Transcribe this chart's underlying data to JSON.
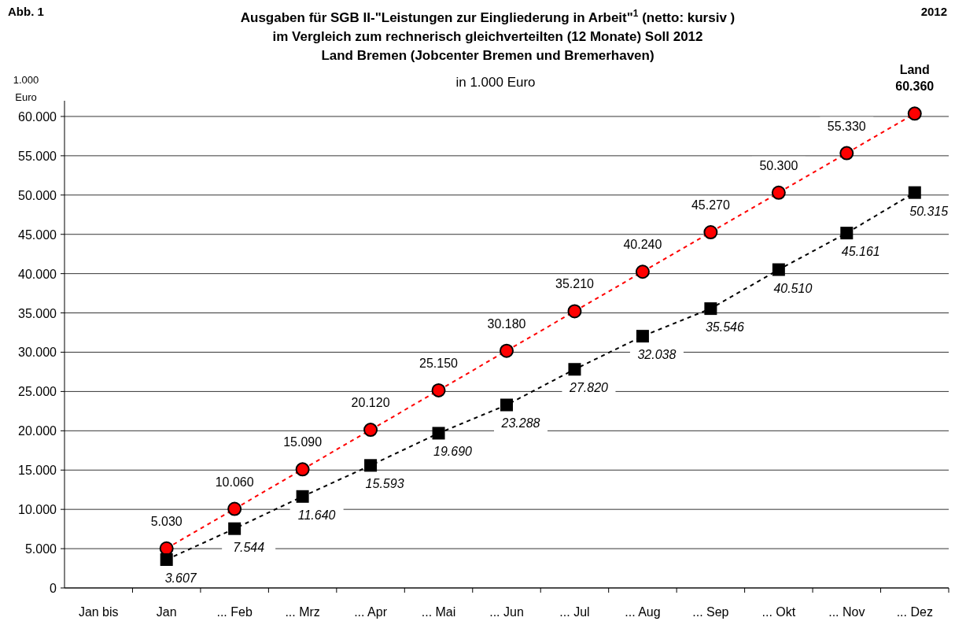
{
  "chart_data": {
    "type": "line",
    "title": "Ausgaben für SGB II-\"Leistungen zur Eingliederung in Arbeit\"$^{1}$ (netto: kursiv )\nim Vergleich zum rechnerisch gleichverteilten (12 Monate) Soll 2012\nLand Bremen (Jobcenter Bremen und Bremerhaven)",
    "subtitle": "in 1.000 Euro",
    "ylabel": "1.000\nEuro",
    "annotations": [
      "Abb. 1",
      "2012",
      "Land"
    ],
    "categories": [
      "Jan bis",
      "Jan",
      "... Feb",
      "... Mrz",
      "... Apr",
      "... Mai",
      "... Jun",
      "... Jul",
      "... Aug",
      "... Sep",
      "... Okt",
      "... Nov",
      "... Dez"
    ],
    "series": [
      {
        "color": "#ff0000",
        "marker": "circle",
        "line_style": "dashed",
        "values": [
          null,
          5030,
          10060,
          15090,
          20120,
          25150,
          30180,
          35210,
          40240,
          45270,
          50300,
          55330,
          60360
        ],
        "value_labels": [
          null,
          "5.030",
          "10.060",
          "15.090",
          "20.120",
          "25.150",
          "30.180",
          "35.210",
          "40.240",
          "45.270",
          "50.300",
          "55.330",
          "60.360"
        ]
      },
      {
        "color": "#000000",
        "marker": "square",
        "line_style": "dashed",
        "values": [
          null,
          3607,
          7544,
          11640,
          15593,
          19690,
          23288,
          27820,
          32038,
          35546,
          40510,
          45161,
          50315
        ],
        "value_labels": [
          null,
          "3.607",
          "7.544",
          "11.640",
          "15.593",
          "19.690",
          "23.288",
          "27.820",
          "32.038",
          "35.546",
          "40.510",
          "45.161",
          "50.315"
        ]
      }
    ],
    "ylim": [
      0,
      62000
    ],
    "yticks": [
      0,
      {
        "value": 5000,
        "label": "5.000"
      },
      {
        "value": 10000,
        "label": "10.000"
      },
      {
        "value": 15000,
        "label": "15.000"
      },
      {
        "value": 20000,
        "label": "20.000"
      },
      {
        "value": 25000,
        "label": "25.000"
      },
      {
        "value": 30000,
        "label": "30.000"
      },
      {
        "value": 35000,
        "label": "35.000"
      },
      {
        "value": 40000,
        "label": "40.000"
      },
      {
        "value": 45000,
        "label": "45.000"
      },
      {
        "value": 50000,
        "label": "50.000"
      },
      {
        "value": 55000,
        "label": "55.000"
      },
      {
        "value": 60000,
        "label": "60.000"
      }
    ],
    "grid": "y"
  }
}
